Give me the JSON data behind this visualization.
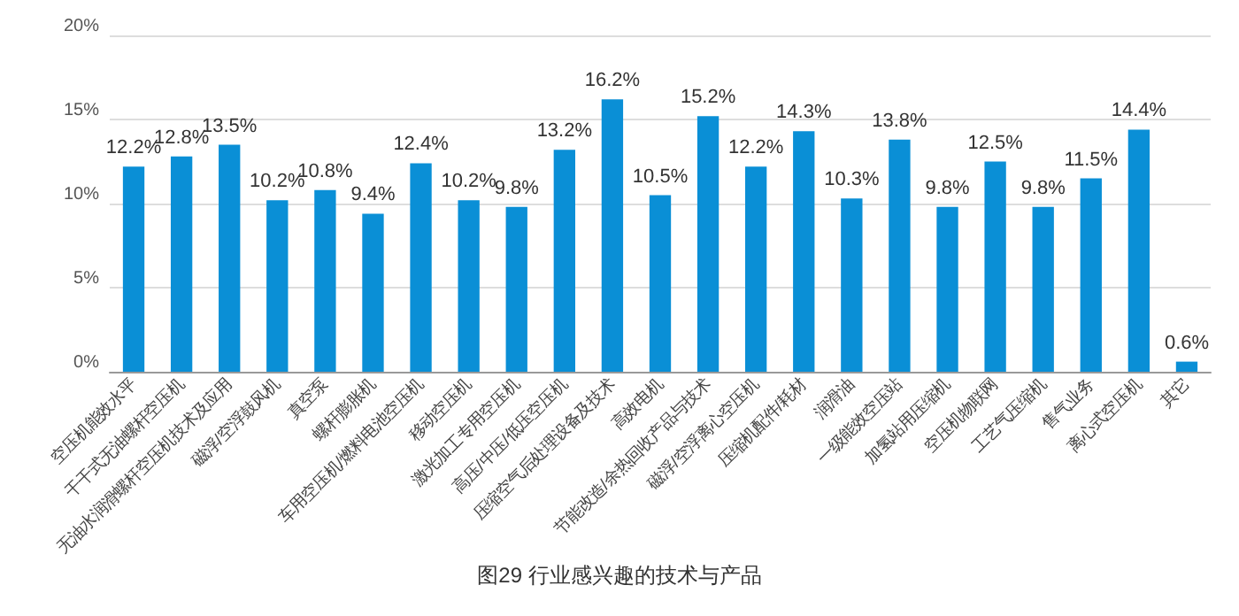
{
  "chart_data": {
    "type": "bar",
    "title": "图29 行业感兴趣的技术与产品",
    "categories": [
      "空压机能效水平",
      "干干式无油螺杆空压机",
      "无油水润滑螺杆空压机技术及应用",
      "磁浮/空浮鼓风机",
      "真空泵",
      "螺杆膨胀机",
      "车用空压机/燃料电池空压机",
      "移动空压机",
      "激光加工专用空压机",
      "高压/中压/低压空压机",
      "压缩空气后处理设备及技术",
      "高效电机",
      "节能改造/余热回收产品与技术",
      "磁浮/空浮离心空压机",
      "压缩机配件/耗材",
      "润滑油",
      "一级能效空压站",
      "加氢站用压缩机",
      "空压机物联网",
      "工艺气压缩机",
      "售气业务",
      "离心式空压机",
      "其它"
    ],
    "values": [
      12.2,
      12.8,
      13.5,
      10.2,
      10.8,
      9.4,
      12.4,
      10.2,
      9.8,
      13.2,
      16.2,
      10.5,
      15.2,
      12.2,
      14.3,
      10.3,
      13.8,
      9.8,
      12.5,
      9.8,
      11.5,
      14.4,
      0.6
    ],
    "value_labels": [
      "12.2%",
      "12.8%",
      "13.5%",
      "10.2%",
      "10.8%",
      "9.4%",
      "12.4%",
      "10.2%",
      "9.8%",
      "13.2%",
      "16.2%",
      "10.5%",
      "15.2%",
      "12.2%",
      "14.3%",
      "10.3%",
      "13.8%",
      "9.8%",
      "12.5%",
      "9.8%",
      "11.5%",
      "14.4%",
      "0.6%"
    ],
    "color": "#0a8fd6",
    "ylim": [
      0,
      20
    ],
    "yticks": [
      {
        "value": 0,
        "label": "0%"
      },
      {
        "value": 5,
        "label": "5%"
      },
      {
        "value": 10,
        "label": "10%"
      },
      {
        "value": 15,
        "label": "15%"
      },
      {
        "value": 20,
        "label": "20%"
      }
    ],
    "grid": "y"
  }
}
